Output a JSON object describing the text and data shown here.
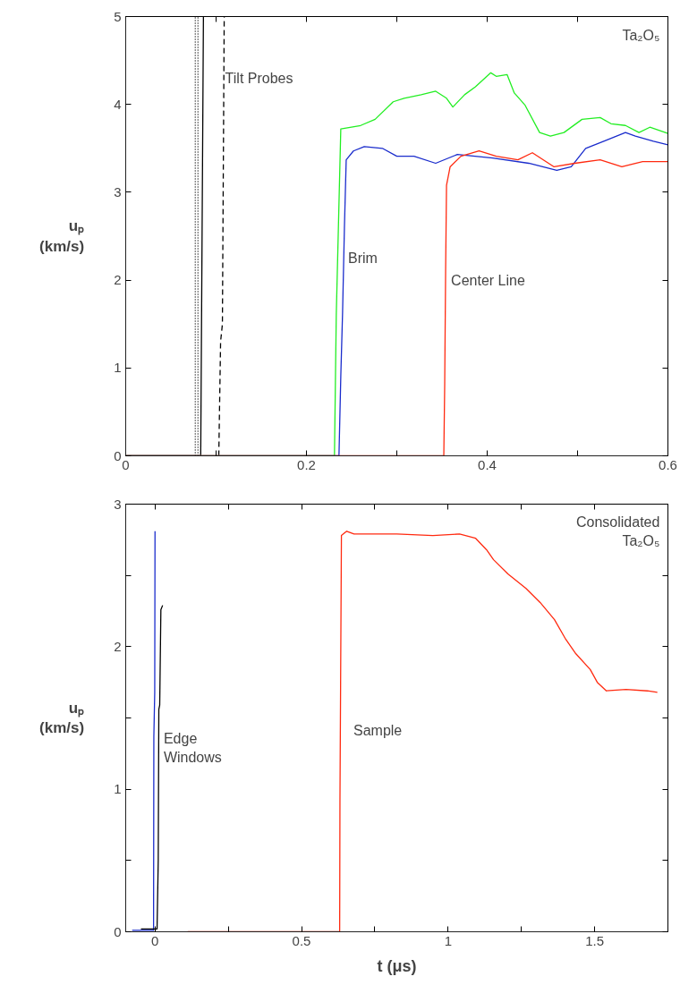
{
  "chart_data": [
    {
      "type": "line",
      "xlim": [
        0,
        0.6
      ],
      "ylim": [
        0,
        5
      ],
      "xticks": [
        0,
        {
          "value": 0.1,
          "label": null
        },
        0.2,
        {
          "value": 0.3,
          "label": null
        },
        0.4,
        {
          "value": 0.5,
          "label": null
        },
        0.6
      ],
      "yticks": [
        0,
        1,
        2,
        3,
        4,
        5
      ],
      "ylabel": "uₚ (km/s)",
      "grid": false,
      "annotations": [
        "Ta₂O₅",
        {
          "text": "Tilt Probes",
          "x": 0.11,
          "y": 4.3
        },
        "Brim",
        "Center Line"
      ],
      "series": [
        {
          "color": "#000000",
          "line_style": "dotted",
          "x": [
            0.077,
            0.077
          ],
          "values": [
            0,
            5
          ]
        },
        {
          "color": "#000000",
          "line_style": "dotted",
          "x": [
            0.08,
            0.08
          ],
          "values": [
            0,
            5
          ]
        },
        {
          "color": "#000000",
          "line_style": "solid",
          "x": [
            0,
            0.083,
            0.086
          ],
          "values": [
            0,
            0,
            5
          ]
        },
        {
          "color": "#000000",
          "line_style": "dashed",
          "x": [
            0.103,
            0.105,
            0.107,
            0.109
          ],
          "values": [
            0,
            1.3,
            1.5,
            5
          ]
        },
        {
          "color": "#22ee22",
          "line_style": "solid",
          "x": [
            0,
            0.231,
            0.233,
            0.238,
            0.26,
            0.276,
            0.296,
            0.308,
            0.327,
            0.343,
            0.355,
            0.362,
            0.375,
            0.387,
            0.404,
            0.41,
            0.422,
            0.43,
            0.442,
            0.458,
            0.47,
            0.485,
            0.505,
            0.525,
            0.537,
            0.553,
            0.568,
            0.58,
            0.6
          ],
          "values": [
            0,
            0,
            1.6,
            3.72,
            3.76,
            3.83,
            4.03,
            4.07,
            4.11,
            4.15,
            4.07,
            3.97,
            4.11,
            4.2,
            4.36,
            4.32,
            4.34,
            4.13,
            3.99,
            3.68,
            3.64,
            3.68,
            3.83,
            3.85,
            3.78,
            3.76,
            3.68,
            3.74,
            3.67
          ]
        },
        {
          "color": "#1a2ccc",
          "line_style": "solid",
          "x": [
            0,
            0.236,
            0.238,
            0.24,
            0.242,
            0.244,
            0.252,
            0.264,
            0.284,
            0.3,
            0.319,
            0.343,
            0.367,
            0.406,
            0.446,
            0.477,
            0.493,
            0.509,
            0.529,
            0.553,
            0.564,
            0.584,
            0.6
          ],
          "values": [
            0,
            0,
            0.9,
            1.64,
            2.59,
            3.37,
            3.47,
            3.52,
            3.5,
            3.41,
            3.41,
            3.33,
            3.43,
            3.39,
            3.33,
            3.25,
            3.29,
            3.5,
            3.58,
            3.68,
            3.64,
            3.58,
            3.54
          ]
        },
        {
          "color": "#ff2a10",
          "line_style": "solid",
          "x": [
            0,
            0.352,
            0.353,
            0.354,
            0.355,
            0.359,
            0.371,
            0.391,
            0.41,
            0.434,
            0.45,
            0.474,
            0.497,
            0.525,
            0.549,
            0.572,
            0.6
          ],
          "values": [
            0,
            0,
            0.82,
            2.09,
            3.08,
            3.29,
            3.41,
            3.47,
            3.41,
            3.37,
            3.45,
            3.29,
            3.33,
            3.37,
            3.29,
            3.35,
            3.35
          ]
        }
      ]
    },
    {
      "type": "line",
      "xlim": [
        -0.1,
        1.75
      ],
      "ylim": [
        0,
        3
      ],
      "xticks": [
        0,
        {
          "value": 0.25,
          "label": null
        },
        0.5,
        {
          "value": 0.75,
          "label": null
        },
        1,
        {
          "value": 1.25,
          "label": null
        },
        1.5
      ],
      "yticks": [
        0,
        {
          "value": 0.5,
          "label": null
        },
        1,
        {
          "value": 1.5,
          "label": null
        },
        2,
        {
          "value": 2.5,
          "label": null
        },
        3
      ],
      "ylabel": "uₚ (km/s)",
      "xlabel": "t (μs)",
      "grid": false,
      "annotations": [
        "Consolidated\nTa₂O₅",
        "Edge\nWindows",
        "Sample"
      ],
      "series": [
        {
          "color": "#1a2ccc",
          "line_style": "solid",
          "x": [
            -0.078,
            -0.005,
            -0.004,
            -0.001,
            0.0
          ],
          "values": [
            0.01,
            0.01,
            1.37,
            1.68,
            2.81
          ]
        },
        {
          "color": "#000000",
          "line_style": "solid",
          "x": [
            -0.048,
            0.007,
            0.011,
            0.013,
            0.016,
            0.02,
            0.026
          ],
          "values": [
            0.02,
            0.02,
            0.5,
            1.56,
            1.59,
            2.26,
            2.29
          ]
        },
        {
          "color": "#ff2a10",
          "line_style": "solid",
          "x": [
            0.111,
            0.63,
            0.631,
            0.636,
            0.654,
            0.679,
            0.728,
            0.825,
            0.948,
            1.039,
            1.094,
            1.131,
            1.155,
            1.204,
            1.265,
            1.314,
            1.363,
            1.399,
            1.436,
            1.485,
            1.509,
            1.54,
            1.607,
            1.68,
            1.714
          ],
          "values": [
            0,
            0,
            0.92,
            2.78,
            2.81,
            2.79,
            2.79,
            2.79,
            2.78,
            2.79,
            2.76,
            2.68,
            2.61,
            2.51,
            2.41,
            2.31,
            2.19,
            2.06,
            1.95,
            1.84,
            1.75,
            1.69,
            1.7,
            1.69,
            1.68
          ]
        }
      ]
    }
  ]
}
